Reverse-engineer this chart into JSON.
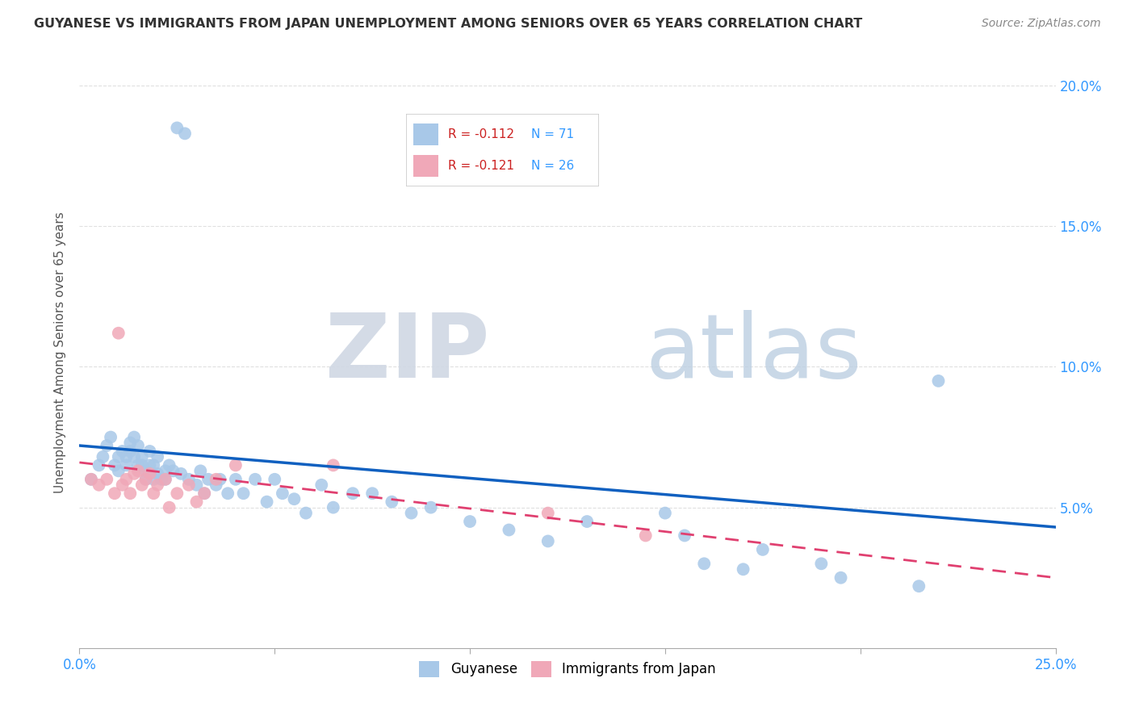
{
  "title": "GUYANESE VS IMMIGRANTS FROM JAPAN UNEMPLOYMENT AMONG SENIORS OVER 65 YEARS CORRELATION CHART",
  "source": "Source: ZipAtlas.com",
  "ylabel": "Unemployment Among Seniors over 65 years",
  "xlim": [
    0.0,
    0.25
  ],
  "ylim": [
    0.0,
    0.21
  ],
  "yticks": [
    0.05,
    0.1,
    0.15,
    0.2
  ],
  "ytick_labels": [
    "5.0%",
    "10.0%",
    "15.0%",
    "20.0%"
  ],
  "legend_r1": "R = -0.112",
  "legend_n1": "N = 71",
  "legend_r2": "R = -0.121",
  "legend_n2": "N = 26",
  "color_guyanese": "#a8c8e8",
  "color_japan": "#f0a8b8",
  "color_line1": "#1060c0",
  "color_line2": "#e04070",
  "guyanese_x": [
    0.003,
    0.005,
    0.006,
    0.007,
    0.008,
    0.009,
    0.01,
    0.01,
    0.011,
    0.012,
    0.012,
    0.013,
    0.013,
    0.014,
    0.014,
    0.015,
    0.015,
    0.016,
    0.016,
    0.017,
    0.017,
    0.018,
    0.018,
    0.019,
    0.019,
    0.02,
    0.02,
    0.021,
    0.022,
    0.022,
    0.023,
    0.024,
    0.025,
    0.026,
    0.027,
    0.028,
    0.03,
    0.031,
    0.032,
    0.033,
    0.035,
    0.036,
    0.038,
    0.04,
    0.042,
    0.045,
    0.048,
    0.05,
    0.052,
    0.055,
    0.058,
    0.062,
    0.065,
    0.07,
    0.075,
    0.08,
    0.085,
    0.09,
    0.1,
    0.11,
    0.12,
    0.13,
    0.15,
    0.155,
    0.16,
    0.17,
    0.175,
    0.19,
    0.195,
    0.215,
    0.22
  ],
  "guyanese_y": [
    0.06,
    0.065,
    0.068,
    0.072,
    0.075,
    0.065,
    0.063,
    0.068,
    0.07,
    0.065,
    0.068,
    0.07,
    0.073,
    0.075,
    0.068,
    0.072,
    0.065,
    0.068,
    0.065,
    0.06,
    0.063,
    0.07,
    0.065,
    0.06,
    0.065,
    0.062,
    0.068,
    0.06,
    0.063,
    0.06,
    0.065,
    0.063,
    0.185,
    0.062,
    0.183,
    0.06,
    0.058,
    0.063,
    0.055,
    0.06,
    0.058,
    0.06,
    0.055,
    0.06,
    0.055,
    0.06,
    0.052,
    0.06,
    0.055,
    0.053,
    0.048,
    0.058,
    0.05,
    0.055,
    0.055,
    0.052,
    0.048,
    0.05,
    0.045,
    0.042,
    0.038,
    0.045,
    0.048,
    0.04,
    0.03,
    0.028,
    0.035,
    0.03,
    0.025,
    0.022,
    0.095
  ],
  "japan_x": [
    0.003,
    0.005,
    0.007,
    0.009,
    0.01,
    0.011,
    0.012,
    0.013,
    0.014,
    0.015,
    0.016,
    0.017,
    0.018,
    0.019,
    0.02,
    0.022,
    0.023,
    0.025,
    0.028,
    0.03,
    0.032,
    0.035,
    0.04,
    0.065,
    0.12,
    0.145
  ],
  "japan_y": [
    0.06,
    0.058,
    0.06,
    0.055,
    0.112,
    0.058,
    0.06,
    0.055,
    0.062,
    0.063,
    0.058,
    0.06,
    0.062,
    0.055,
    0.058,
    0.06,
    0.05,
    0.055,
    0.058,
    0.052,
    0.055,
    0.06,
    0.065,
    0.065,
    0.048,
    0.04
  ],
  "line1_x": [
    0.0,
    0.25
  ],
  "line1_y": [
    0.072,
    0.043
  ],
  "line2_x": [
    0.0,
    0.25
  ],
  "line2_y": [
    0.066,
    0.025
  ]
}
